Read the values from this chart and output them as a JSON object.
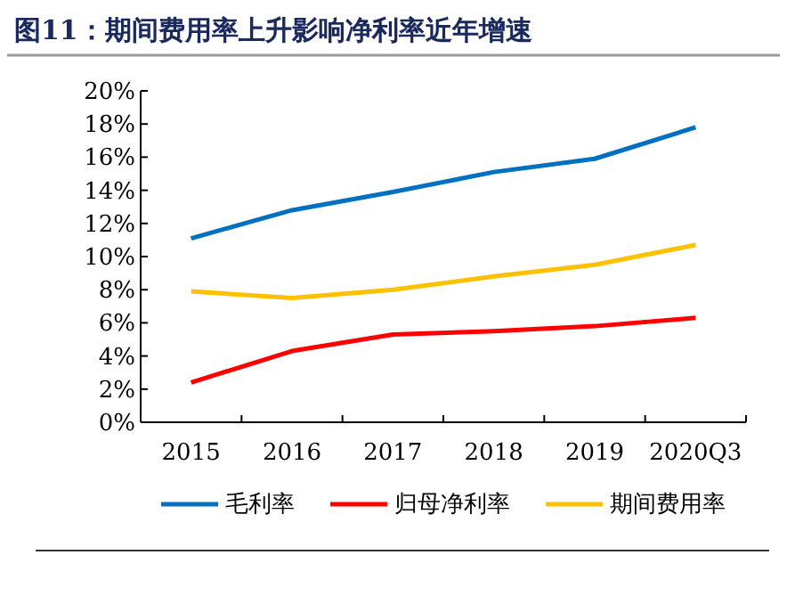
{
  "chart_data": {
    "type": "line",
    "title": "图11：期间费用率上升影响净利率近年增速",
    "categories": [
      "2015",
      "2016",
      "2017",
      "2018",
      "2019",
      "2020Q3"
    ],
    "series": [
      {
        "name": "毛利率",
        "color": "#0070c0",
        "values": [
          11.1,
          12.8,
          13.9,
          15.1,
          15.9,
          17.8
        ]
      },
      {
        "name": "归母净利率",
        "color": "#ff0000",
        "values": [
          2.4,
          4.3,
          5.3,
          5.5,
          5.8,
          6.3
        ]
      },
      {
        "name": "期间费用率",
        "color": "#ffc000",
        "values": [
          7.9,
          7.5,
          8.0,
          8.8,
          9.5,
          10.7
        ]
      }
    ],
    "ylim": [
      0,
      20
    ],
    "yticks": [
      {
        "value": 0,
        "label": "0%"
      },
      {
        "value": 2,
        "label": "2%"
      },
      {
        "value": 4,
        "label": "4%"
      },
      {
        "value": 6,
        "label": "6%"
      },
      {
        "value": 8,
        "label": "8%"
      },
      {
        "value": 10,
        "label": "10%"
      },
      {
        "value": 12,
        "label": "12%"
      },
      {
        "value": 14,
        "label": "14%"
      },
      {
        "value": 16,
        "label": "16%"
      },
      {
        "value": 18,
        "label": "18%"
      },
      {
        "value": 20,
        "label": "20%"
      }
    ],
    "legend": "bottom"
  }
}
